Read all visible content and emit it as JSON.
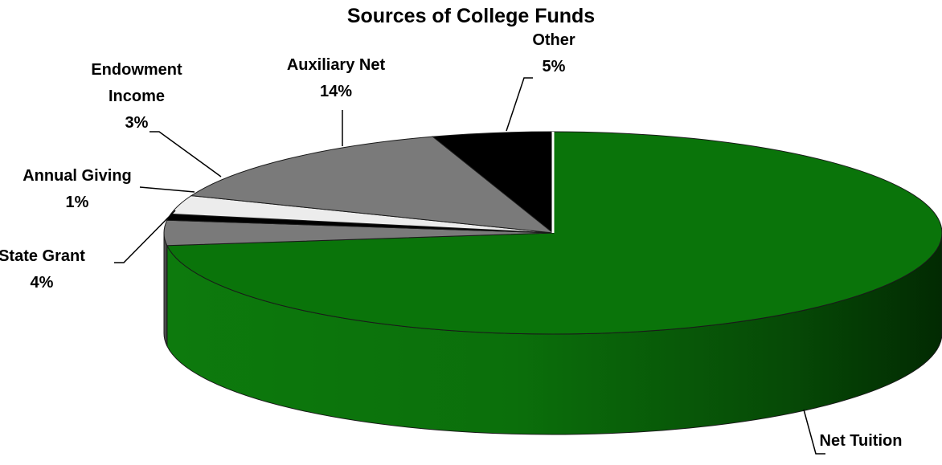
{
  "chart_data": {
    "type": "pie",
    "title": "Sources of College Funds",
    "categories": [
      "Net Tuition",
      "State Grant",
      "Annual Giving",
      "Endowment Income",
      "Auxiliary Net",
      "Other"
    ],
    "values": [
      73,
      4,
      1,
      3,
      14,
      5
    ],
    "value_labels": [
      "73%",
      "4%",
      "1%",
      "3%",
      "14%",
      "5%"
    ],
    "label_lines": [
      [
        "Net Tuition"
      ],
      [
        "State Grant"
      ],
      [
        "Annual Giving"
      ],
      [
        "Endowment",
        "Income"
      ],
      [
        "Auxiliary Net"
      ],
      [
        "Other"
      ]
    ],
    "colors": [
      "#0a740a",
      "#7a7a7a",
      "#000000",
      "#ececec",
      "#7a7a7a",
      "#000000"
    ],
    "three_d": true,
    "legend": "none"
  }
}
